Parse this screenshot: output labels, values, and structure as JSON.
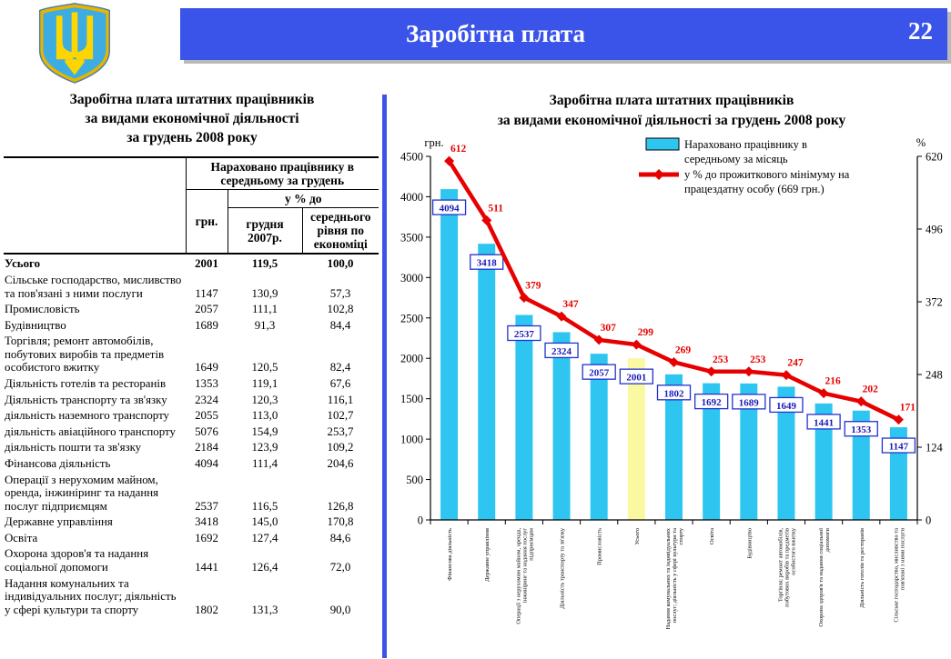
{
  "header": {
    "title": "Заробітна плата",
    "page_number": "22",
    "banner_color": "#3A53E8"
  },
  "icons": {
    "emblem": "ukraine-coat-of-arms",
    "emblem_colors": {
      "shield": "#3CACE2",
      "trident": "#FFD500",
      "border": "#E8B400"
    }
  },
  "table_panel": {
    "title_lines": [
      "Заробітна плата штатних працівників",
      "за видами економічної діяльності",
      "за грудень 2008 року"
    ],
    "header": {
      "group": "Нараховано працівнику в середньому за грудень",
      "col_uah": "грн.",
      "pct_group": "у % до",
      "col_dec2007": "грудня 2007р.",
      "col_avg": "середнього рівня по економіці"
    },
    "rows": [
      {
        "label": "Усього",
        "bold": true,
        "indent": false,
        "uah": "2001",
        "pct_2007": "119,5",
        "pct_avg": "100,0"
      },
      {
        "label": "Сільське господарство, мислив­ство та пов'язані з ними послуги",
        "bold": false,
        "indent": false,
        "uah": "1147",
        "pct_2007": "130,9",
        "pct_avg": "57,3"
      },
      {
        "label": "Промисловість",
        "bold": false,
        "indent": false,
        "uah": "2057",
        "pct_2007": "111,1",
        "pct_avg": "102,8"
      },
      {
        "label": "Будівництво",
        "bold": false,
        "indent": false,
        "uah": "1689",
        "pct_2007": "91,3",
        "pct_avg": "84,4"
      },
      {
        "label": "Торгівля; ремонт автомобілів, побутових виробів та предметів особистого вжитку",
        "bold": false,
        "indent": false,
        "uah": "1649",
        "pct_2007": "120,5",
        "pct_avg": "82,4"
      },
      {
        "label": "Діяльність готелів та ресторанів",
        "bold": false,
        "indent": false,
        "uah": "1353",
        "pct_2007": "119,1",
        "pct_avg": "67,6"
      },
      {
        "label": "Діяльність транспорту та зв'язку",
        "bold": false,
        "indent": false,
        "uah": "2324",
        "pct_2007": "120,3",
        "pct_avg": "116,1"
      },
      {
        "label": "діяльність наземного транспорту",
        "bold": false,
        "indent": true,
        "uah": "2055",
        "pct_2007": "113,0",
        "pct_avg": "102,7"
      },
      {
        "label": "діяльність авіаційного транспорту",
        "bold": false,
        "indent": true,
        "uah": "5076",
        "pct_2007": "154,9",
        "pct_avg": "253,7"
      },
      {
        "label": "діяльність пошти та зв'язку",
        "bold": false,
        "indent": true,
        "uah": "2184",
        "pct_2007": "123,9",
        "pct_avg": "109,2"
      },
      {
        "label": "Фінансова діяльність",
        "bold": false,
        "indent": false,
        "uah": "4094",
        "pct_2007": "111,4",
        "pct_avg": "204,6"
      },
      {
        "label": "Операції з нерухомим майном, оренда, інжиніринг та надання послуг підприємцям",
        "bold": false,
        "indent": false,
        "uah": "2537",
        "pct_2007": "116,5",
        "pct_avg": "126,8"
      },
      {
        "label": "Державне управління",
        "bold": false,
        "indent": false,
        "uah": "3418",
        "pct_2007": "145,0",
        "pct_avg": "170,8"
      },
      {
        "label": "Освіта",
        "bold": false,
        "indent": false,
        "uah": "1692",
        "pct_2007": "127,4",
        "pct_avg": "84,6"
      },
      {
        "label": "Охорона здоров'я та надання соціальної допомоги",
        "bold": false,
        "indent": false,
        "uah": "1441",
        "pct_2007": "126,4",
        "pct_avg": "72,0"
      },
      {
        "label": "Надання комунальних та індивідуальних послуг; діяльність у сфері культури та спорту",
        "bold": false,
        "indent": false,
        "uah": "1802",
        "pct_2007": "131,3",
        "pct_avg": "90,0"
      }
    ]
  },
  "chart_data": {
    "type": "bar",
    "subtype": "bar+line",
    "title_lines": [
      "Заробітна плата штатних працівників",
      "за видами економічної діяльності за грудень 2008 року"
    ],
    "categories": [
      "Фінансова діяльність",
      "Державне управління",
      "Операції з нерухомим майном, оренда, інжиніринг та надання послуг підприємцям",
      "Діяльність транспорту та зв'язку",
      "Промисловість",
      "Усього",
      "Надання комунальних та індивідуальних послуг; діяльність у сфері культури та спорту",
      "Освіта",
      "Будівництво",
      "Торгівля; ремонт автомобілів, побутових виробів та предметів особистого вжитку",
      "Охорона здоров'я та надання соціальної допомоги",
      "Діяльність готелів та ресторанів",
      "Сільське господарство, мисливство та пов'язані з ними послуги"
    ],
    "categories_wrapped": [
      [
        "Фінансова діяльність"
      ],
      [
        "Державне управління"
      ],
      [
        "Операції з нерухомим майном, оренда,",
        "інжиніринг та надання послуг",
        "підприємцям"
      ],
      [
        "Діяльність транспорту та зв'язку"
      ],
      [
        "Промисловість"
      ],
      [
        "Усього"
      ],
      [
        "Надання комунальних та індивідуальних",
        "послуг; діяльність у сфері культури та",
        "спорту"
      ],
      [
        "Освіта"
      ],
      [
        "Будівництво"
      ],
      [
        "Торгівля; ремонт автомобілів,",
        "побутових виробів та предметів",
        "особистого вжитку"
      ],
      [
        "Охорона здоров'я та надання соціальної",
        "допомоги"
      ],
      [
        "Діяльність готелів та ресторанів"
      ],
      [
        "Сільське господарство, мисливство та",
        "пов'язані з ними послуги"
      ]
    ],
    "series": [
      {
        "name": "Нараховано працівнику в середньому за місяць",
        "type": "bar",
        "axis": "left",
        "values": [
          4094,
          3418,
          2537,
          2324,
          2057,
          2001,
          1802,
          1692,
          1689,
          1649,
          1441,
          1353,
          1147
        ],
        "color": "#2EC6F0",
        "legend_lines": [
          "Нараховано працівнику в",
          "середньому за місяць"
        ],
        "highlight": {
          "category": "Усього",
          "color": "#FAF9A2"
        }
      },
      {
        "name": "у % до прожиткового мінімуму на працездатну особу (669 грн.)",
        "type": "line",
        "axis": "right",
        "values": [
          612,
          511,
          379,
          347,
          307,
          299,
          269,
          253,
          253,
          247,
          216,
          202,
          171
        ],
        "color": "#E60000",
        "legend_lines": [
          "у % до прожиткового мінімуму на",
          "працездатну особу (669 грн.)"
        ]
      }
    ],
    "left_axis": {
      "label": "грн.",
      "min": 0,
      "max": 4500,
      "step": 500
    },
    "right_axis": {
      "label": "%",
      "min": 0,
      "max": 620,
      "step": 124
    },
    "grid": false,
    "legend_position": "top-inside"
  }
}
